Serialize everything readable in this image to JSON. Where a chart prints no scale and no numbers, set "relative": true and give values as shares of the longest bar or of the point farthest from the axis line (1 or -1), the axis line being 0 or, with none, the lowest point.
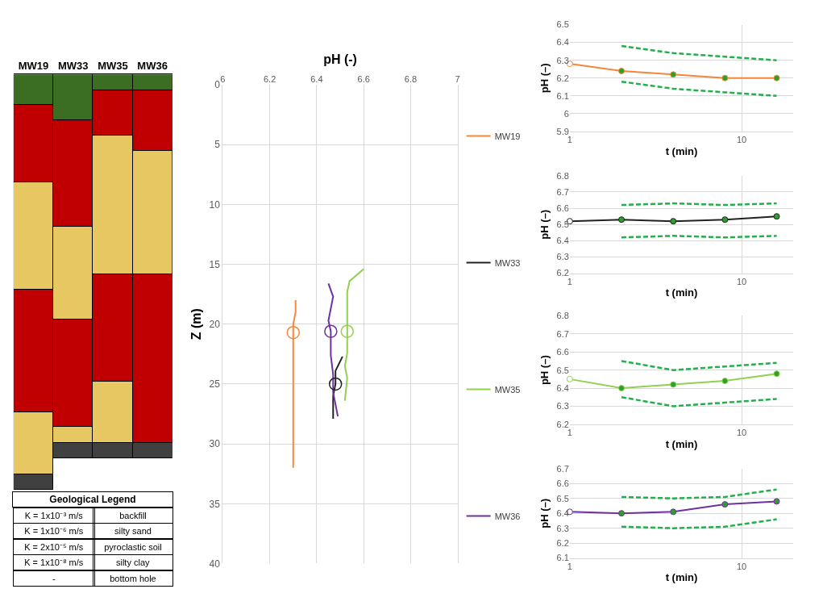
{
  "chart_data": [
    {
      "type": "bar",
      "stacked": true,
      "relative": true,
      "tick_labels": "x",
      "categories": [
        "MW19",
        "MW33",
        "MW35",
        "MW36"
      ],
      "series": [
        {
          "colors": [
            "#3b6e22",
            "#3b6e22",
            "#3b6e22",
            "#3b6e22"
          ],
          "values": [
            -0.074,
            -0.111,
            -0.038,
            -0.038
          ]
        },
        {
          "colors": [
            "#c00000",
            "#c00000",
            "#c00000",
            "#c00000"
          ],
          "values": [
            -0.186,
            -0.257,
            -0.11,
            -0.146
          ]
        },
        {
          "colors": [
            "#e6c761",
            "#e6c761",
            "#e6c761",
            "#e6c761"
          ],
          "values": [
            -0.259,
            -0.223,
            -0.333,
            -0.297
          ]
        },
        {
          "colors": [
            "#c00000",
            "#c00000",
            "#c00000",
            "#c00000"
          ],
          "values": [
            -0.295,
            -0.258,
            -0.259,
            -0.407
          ]
        },
        {
          "colors": [
            "#e6c761",
            "#e6c761",
            "#e6c761",
            "#404040"
          ],
          "values": [
            -0.15,
            -0.039,
            -0.148,
            -0.036
          ]
        },
        {
          "colors": [
            "#404040",
            "#404040",
            "#404040",
            null
          ],
          "values": [
            -0.036,
            -0.036,
            -0.036,
            null
          ]
        }
      ],
      "annotations": [
        "Geological Legend",
        "K = 1x10⁻³ m/s",
        "backfill",
        "K = 1x10⁻⁶ m/s",
        "silty sand",
        "K = 2x10⁻⁵ m/s",
        "pyroclastic soil",
        "K = 1x10⁻⁸ m/s",
        "silty clay",
        "-",
        "bottom hole"
      ]
    },
    {
      "type": "line",
      "xlabel": "pH (-)",
      "ylabel": "Z (m)",
      "xlim": [
        6,
        7
      ],
      "xticks": [
        6,
        6.2,
        6.4,
        6.6,
        6.8,
        7
      ],
      "ylim": [
        40,
        0
      ],
      "yticks": [
        0,
        5,
        10,
        15,
        20,
        25,
        30,
        35,
        40
      ],
      "grid": true,
      "legend": "right",
      "series": [
        {
          "name": "MW19",
          "color": "#f4873a",
          "x": [
            6.31,
            6.31,
            6.3,
            6.3
          ],
          "values": [
            18.0,
            19.0,
            20.0,
            32.0
          ]
        },
        {
          "name": "MW33",
          "color": "#222222",
          "x": [
            6.51,
            6.48,
            6.48,
            6.47,
            6.47
          ],
          "values": [
            22.7,
            23.9,
            25.0,
            26.0,
            27.9
          ]
        },
        {
          "name": "MW35",
          "color": "#92d050",
          "x": [
            6.6,
            6.54,
            6.53,
            6.53,
            6.53,
            6.53,
            6.52,
            6.53,
            6.52
          ],
          "values": [
            15.4,
            16.4,
            17.3,
            19.4,
            20.6,
            22.4,
            23.5,
            24.5,
            26.4
          ]
        },
        {
          "name": "MW36",
          "color": "#7030a0",
          "x": [
            6.45,
            6.47,
            6.45,
            6.46,
            6.46,
            6.47,
            6.47,
            6.49
          ],
          "values": [
            16.6,
            17.7,
            19.7,
            20.6,
            22.6,
            24.2,
            25.7,
            27.7
          ]
        },
        {
          "type": "scatter",
          "marker": "circle",
          "color": "#f4873a",
          "x": [
            6.3
          ],
          "values": [
            20.7
          ]
        },
        {
          "type": "scatter",
          "marker": "circle",
          "color": "#92d050",
          "x": [
            6.53
          ],
          "values": [
            20.6
          ]
        },
        {
          "type": "scatter",
          "marker": "circle",
          "color": "#7030a0",
          "x": [
            6.46
          ],
          "values": [
            20.6
          ]
        },
        {
          "type": "scatter",
          "marker": "circle",
          "color": "#222222",
          "x": [
            6.48
          ],
          "values": [
            25.0
          ]
        }
      ]
    },
    {
      "type": "line",
      "xlabel": "t (min)",
      "ylabel": "pH (–)",
      "log": "x",
      "xlim": [
        1,
        20
      ],
      "xticks": [
        1,
        10
      ],
      "ylim": [
        5.9,
        6.5
      ],
      "yticks": [
        5.9,
        6,
        6.1,
        6.2,
        6.3,
        6.4,
        6.5
      ],
      "grid": true,
      "series": [
        {
          "color": "#22b04b",
          "line_style": "dashed",
          "x": [
            2,
            4,
            8,
            16
          ],
          "values": [
            6.38,
            6.34,
            6.32,
            6.3
          ]
        },
        {
          "color": "#22b04b",
          "line_style": "dashed",
          "x": [
            2,
            4,
            8,
            16
          ],
          "values": [
            6.18,
            6.14,
            6.12,
            6.1
          ]
        },
        {
          "color": "#f4873a",
          "marker": "circle",
          "colors": [
            "#ffffff",
            "#2ca02c",
            "#2ca02c",
            "#2ca02c",
            "#2ca02c"
          ],
          "x": [
            1,
            2,
            4,
            8,
            16
          ],
          "values": [
            6.28,
            6.24,
            6.22,
            6.2,
            6.2
          ]
        }
      ]
    },
    {
      "type": "line",
      "xlabel": "t (min)",
      "ylabel": "pH (–)",
      "log": "x",
      "xlim": [
        1,
        20
      ],
      "xticks": [
        1,
        10
      ],
      "ylim": [
        6.2,
        6.8
      ],
      "yticks": [
        6.2,
        6.3,
        6.4,
        6.5,
        6.6,
        6.7,
        6.8
      ],
      "grid": true,
      "series": [
        {
          "color": "#22b04b",
          "line_style": "dashed",
          "x": [
            2,
            4,
            8,
            16
          ],
          "values": [
            6.62,
            6.63,
            6.62,
            6.63
          ]
        },
        {
          "color": "#22b04b",
          "line_style": "dashed",
          "x": [
            2,
            4,
            8,
            16
          ],
          "values": [
            6.42,
            6.43,
            6.42,
            6.43
          ]
        },
        {
          "color": "#222222",
          "marker": "circle",
          "colors": [
            "#ffffff",
            "#2ca02c",
            "#2ca02c",
            "#2ca02c",
            "#2ca02c"
          ],
          "x": [
            1,
            2,
            4,
            8,
            16
          ],
          "values": [
            6.52,
            6.53,
            6.52,
            6.53,
            6.55
          ]
        }
      ]
    },
    {
      "type": "line",
      "xlabel": "t (min)",
      "ylabel": "pH (–)",
      "log": "x",
      "xlim": [
        1,
        20
      ],
      "xticks": [
        1,
        10
      ],
      "ylim": [
        6.2,
        6.8
      ],
      "yticks": [
        6.2,
        6.3,
        6.4,
        6.5,
        6.6,
        6.7,
        6.8
      ],
      "grid": true,
      "series": [
        {
          "color": "#22b04b",
          "line_style": "dashed",
          "x": [
            2,
            4,
            8,
            16
          ],
          "values": [
            6.55,
            6.5,
            6.52,
            6.54
          ]
        },
        {
          "color": "#22b04b",
          "line_style": "dashed",
          "x": [
            2,
            4,
            8,
            16
          ],
          "values": [
            6.35,
            6.3,
            6.32,
            6.34
          ]
        },
        {
          "color": "#92d050",
          "marker": "circle",
          "colors": [
            "#ffffff",
            "#2ca02c",
            "#2ca02c",
            "#2ca02c",
            "#2ca02c"
          ],
          "x": [
            1,
            2,
            4,
            8,
            16
          ],
          "values": [
            6.45,
            6.4,
            6.42,
            6.44,
            6.48
          ]
        }
      ]
    },
    {
      "type": "line",
      "xlabel": "t (min)",
      "ylabel": "pH (–)",
      "log": "x",
      "xlim": [
        1,
        20
      ],
      "xticks": [
        1,
        10
      ],
      "ylim": [
        6.1,
        6.7
      ],
      "yticks": [
        6.1,
        6.2,
        6.3,
        6.4,
        6.5,
        6.6,
        6.7
      ],
      "grid": true,
      "series": [
        {
          "color": "#22b04b",
          "line_style": "dashed",
          "x": [
            2,
            4,
            8,
            16
          ],
          "values": [
            6.51,
            6.5,
            6.51,
            6.56
          ]
        },
        {
          "color": "#22b04b",
          "line_style": "dashed",
          "x": [
            2,
            4,
            8,
            16
          ],
          "values": [
            6.31,
            6.3,
            6.31,
            6.36
          ]
        },
        {
          "color": "#7030a0",
          "marker": "circle",
          "colors": [
            "#ffffff",
            "#2ca02c",
            "#2ca02c",
            "#2ca02c",
            "#2ca02c"
          ],
          "x": [
            1,
            2,
            4,
            8,
            16
          ],
          "values": [
            6.41,
            6.4,
            6.41,
            6.46,
            6.48
          ]
        }
      ]
    }
  ]
}
